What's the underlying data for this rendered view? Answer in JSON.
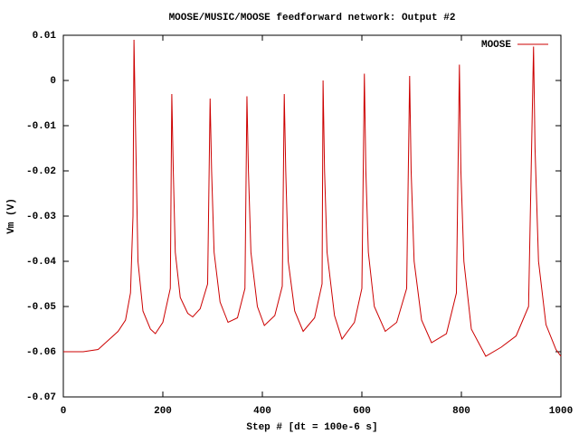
{
  "chart_data": {
    "type": "line",
    "title": "MOOSE/MUSIC/MOOSE feedforward network: Output #2",
    "xlabel": "Step # [dt = 100e-6 s]",
    "ylabel": "Vm (V)",
    "x": [
      0,
      40,
      70,
      90,
      110,
      125,
      135,
      140,
      142,
      145,
      150,
      160,
      175,
      185,
      200,
      215,
      218,
      221,
      225,
      235,
      250,
      260,
      275,
      290,
      295,
      298,
      303,
      315,
      331,
      350,
      365,
      369,
      372,
      377,
      390,
      404,
      425,
      440,
      444,
      447,
      452,
      465,
      482,
      505,
      520,
      522,
      525,
      530,
      545,
      560,
      585,
      600,
      605,
      608,
      613,
      625,
      647,
      670,
      690,
      696,
      699,
      705,
      720,
      740,
      770,
      790,
      796,
      799,
      805,
      820,
      849,
      880,
      910,
      935,
      945,
      948,
      955,
      970,
      990,
      1000
    ],
    "series": [
      {
        "name": "MOOSE",
        "color": "#cc0000",
        "values": [
          -0.06,
          -0.06,
          -0.0595,
          -0.0575,
          -0.0555,
          -0.053,
          -0.047,
          -0.03,
          0.009,
          -0.01,
          -0.04,
          -0.051,
          -0.055,
          -0.056,
          -0.0535,
          -0.046,
          -0.003,
          -0.02,
          -0.038,
          -0.048,
          -0.0515,
          -0.0523,
          -0.0505,
          -0.045,
          -0.004,
          -0.02,
          -0.038,
          -0.049,
          -0.0535,
          -0.0525,
          -0.046,
          -0.0035,
          -0.02,
          -0.038,
          -0.05,
          -0.0542,
          -0.052,
          -0.0455,
          -0.003,
          -0.02,
          -0.04,
          -0.051,
          -0.0555,
          -0.0525,
          -0.045,
          0.0,
          -0.02,
          -0.038,
          -0.052,
          -0.0572,
          -0.0535,
          -0.046,
          0.0015,
          -0.02,
          -0.038,
          -0.05,
          -0.0555,
          -0.0535,
          -0.046,
          0.001,
          -0.02,
          -0.04,
          -0.053,
          -0.058,
          -0.056,
          -0.047,
          0.0035,
          -0.02,
          -0.04,
          -0.055,
          -0.061,
          -0.059,
          -0.0565,
          -0.05,
          0.0075,
          -0.015,
          -0.04,
          -0.054,
          -0.0595,
          -0.061
        ]
      }
    ],
    "xlim": [
      0,
      1000
    ],
    "xticks": [
      0,
      200,
      400,
      600,
      800,
      1000
    ],
    "ylim": [
      -0.07,
      0.01
    ],
    "yticks": [
      -0.07,
      -0.06,
      -0.05,
      -0.04,
      -0.03,
      -0.02,
      -0.01,
      0,
      0.01
    ],
    "grid": false,
    "legend": "top-right"
  }
}
